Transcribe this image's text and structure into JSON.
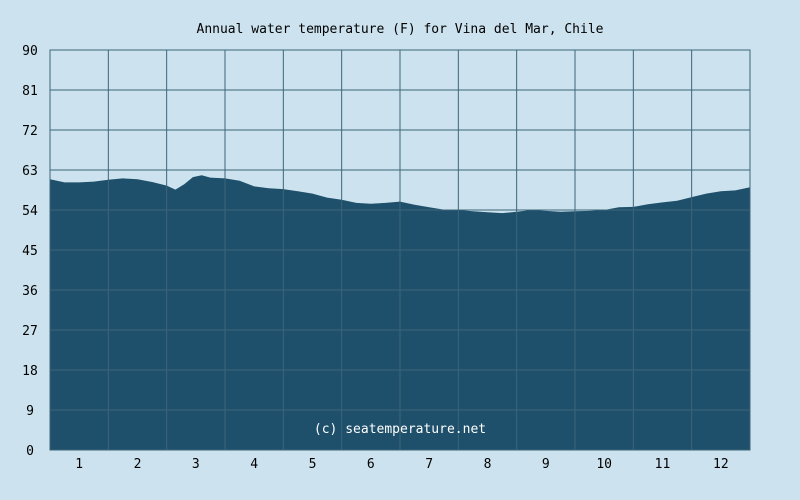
{
  "chart_data": {
    "type": "area",
    "title": "Annual water temperature (F) for Vina del Mar, Chile",
    "watermark": "(c) seatemperature.net",
    "xlabel": "",
    "ylabel": "",
    "ylim": [
      0,
      90
    ],
    "xlim": [
      0.5,
      12.5
    ],
    "y_ticks": [
      0,
      9,
      18,
      27,
      36,
      45,
      54,
      63,
      72,
      81,
      90
    ],
    "x_ticks": [
      1,
      2,
      3,
      4,
      5,
      6,
      7,
      8,
      9,
      10,
      11,
      12
    ],
    "grid": true,
    "colors": {
      "background": "#cce3ef",
      "area": "#1e4f6b",
      "grid": "#3d6478"
    },
    "series": [
      {
        "x": [
          0.5,
          0.75,
          1.0,
          1.25,
          1.5,
          1.75,
          2.0,
          2.25,
          2.5,
          2.65,
          2.8,
          2.95,
          3.1,
          3.25,
          3.5,
          3.75,
          4.0,
          4.25,
          4.5,
          4.75,
          5.0,
          5.25,
          5.5,
          5.75,
          6.0,
          6.25,
          6.5,
          6.75,
          7.0,
          7.25,
          7.5,
          7.75,
          8.0,
          8.25,
          8.5,
          8.75,
          9.0,
          9.25,
          9.5,
          9.75,
          10.0,
          10.25,
          10.5,
          10.75,
          11.0,
          11.25,
          11.5,
          11.75,
          12.0,
          12.25,
          12.5
        ],
        "values": [
          60.9,
          60.2,
          60.2,
          60.4,
          60.8,
          61.1,
          60.9,
          60.3,
          59.5,
          58.6,
          59.8,
          61.4,
          61.8,
          61.3,
          61.1,
          60.6,
          59.3,
          58.9,
          58.7,
          58.2,
          57.7,
          56.8,
          56.3,
          55.6,
          55.4,
          55.6,
          55.9,
          55.2,
          54.6,
          54.1,
          54.0,
          53.7,
          53.5,
          53.3,
          53.6,
          54.0,
          53.8,
          53.6,
          53.7,
          53.8,
          54.0,
          54.6,
          54.7,
          55.3,
          55.7,
          56.1,
          56.9,
          57.7,
          58.2,
          58.4,
          59.1
        ]
      }
    ]
  }
}
